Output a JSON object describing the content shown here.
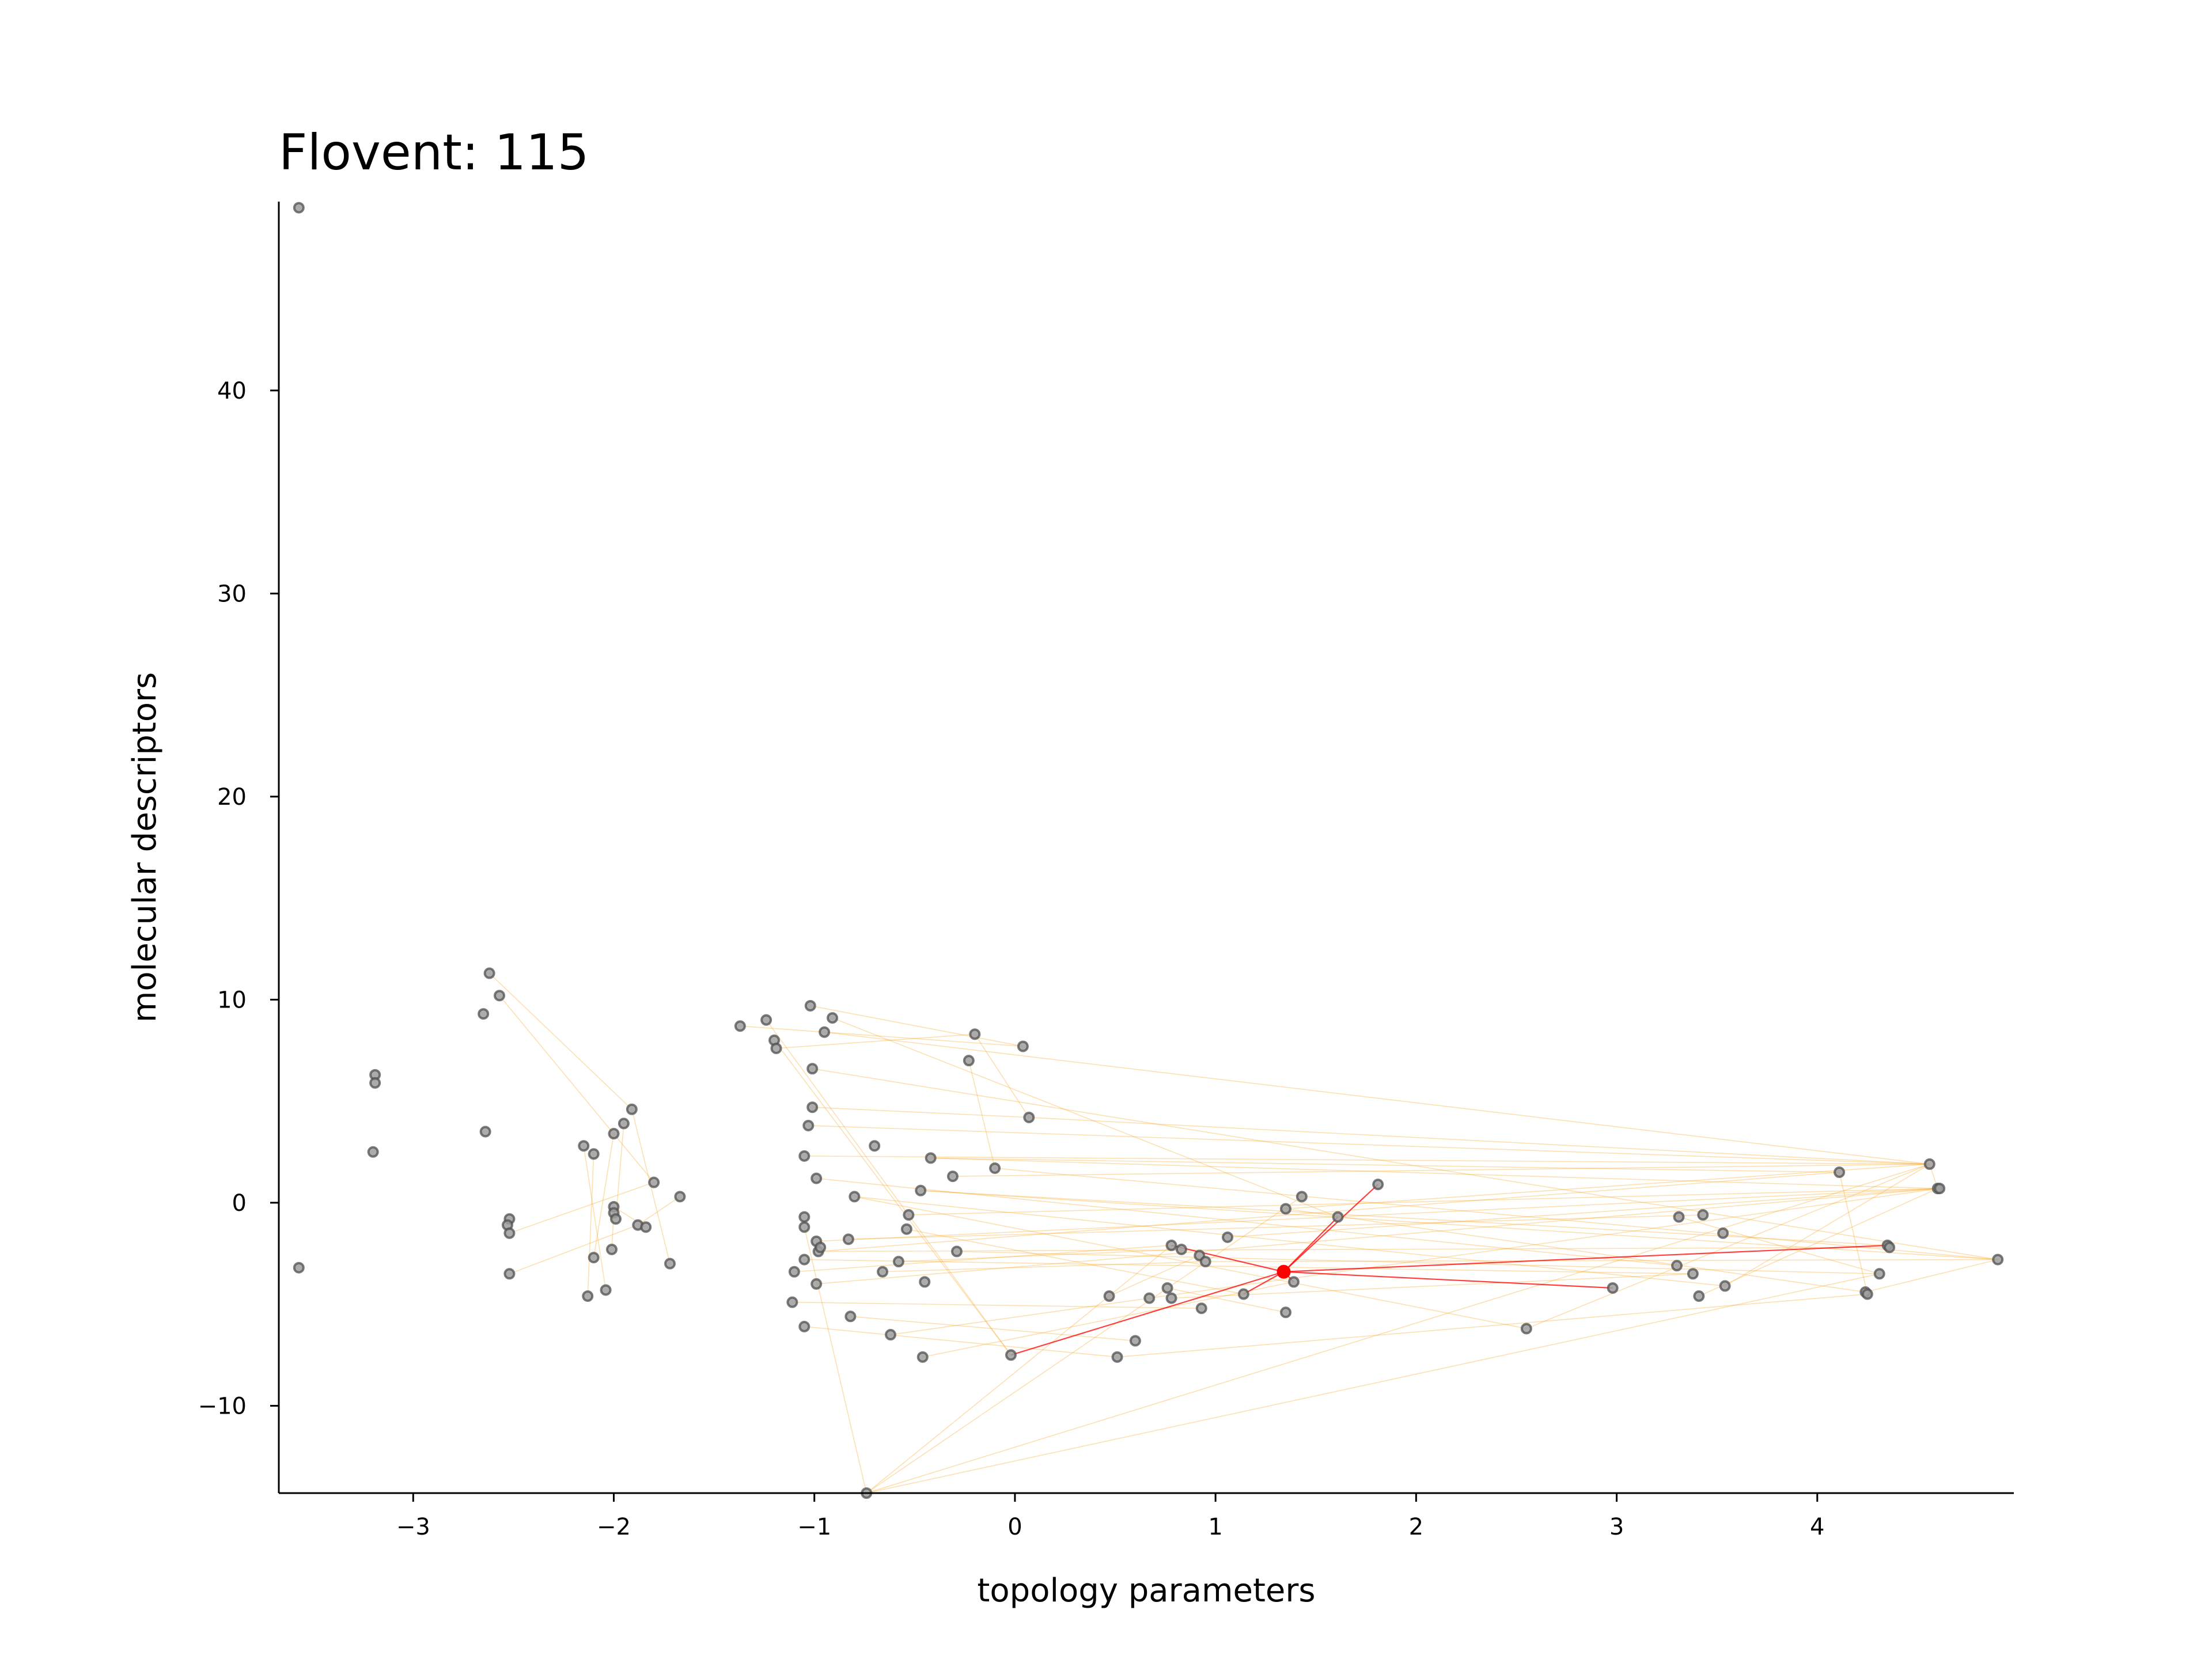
{
  "chart_data": {
    "type": "scatter",
    "title": "Flovent: 115",
    "xlabel": "topology parameters",
    "ylabel": "molecular descriptors",
    "xlim": [
      -3.67,
      4.98
    ],
    "ylim": [
      -14.3,
      49.3
    ],
    "xticks": [
      -3,
      -2,
      -1,
      0,
      1,
      2,
      3,
      4
    ],
    "xtick_labels": [
      "−3",
      "−2",
      "−1",
      "0",
      "1",
      "2",
      "3",
      "4"
    ],
    "yticks": [
      -10,
      0,
      10,
      20,
      30,
      40
    ],
    "ytick_labels": [
      "−10",
      "0",
      "10",
      "20",
      "30",
      "40"
    ],
    "grid": false,
    "legend": "none",
    "colors": {
      "node_fill": "#9e9e9e",
      "node_edge": "#505050",
      "edge": "#f5a623",
      "highlight": "#ff0000"
    },
    "highlight_index": 0,
    "points": [
      [
        1.34,
        -3.4
      ],
      [
        -3.57,
        49.0
      ],
      [
        -3.57,
        -3.2
      ],
      [
        -3.19,
        6.3
      ],
      [
        -3.19,
        5.9
      ],
      [
        -3.2,
        2.5
      ],
      [
        -2.62,
        11.3
      ],
      [
        -2.57,
        10.2
      ],
      [
        -2.65,
        9.3
      ],
      [
        -2.64,
        3.5
      ],
      [
        -2.52,
        -0.8
      ],
      [
        -2.53,
        -1.1
      ],
      [
        -2.52,
        -1.5
      ],
      [
        -2.52,
        -3.5
      ],
      [
        -2.15,
        2.8
      ],
      [
        -2.1,
        2.4
      ],
      [
        -2.1,
        -2.7
      ],
      [
        -2.13,
        -4.6
      ],
      [
        -2.04,
        -4.3
      ],
      [
        -2.0,
        3.4
      ],
      [
        -2.0,
        -0.2
      ],
      [
        -2.0,
        -0.5
      ],
      [
        -1.99,
        -0.8
      ],
      [
        -2.01,
        -2.3
      ],
      [
        -1.95,
        3.9
      ],
      [
        -1.91,
        4.6
      ],
      [
        -1.88,
        -1.1
      ],
      [
        -1.84,
        -1.2
      ],
      [
        -1.8,
        1.0
      ],
      [
        -1.72,
        -3.0
      ],
      [
        -1.67,
        0.3
      ],
      [
        -1.37,
        8.7
      ],
      [
        -1.24,
        9.0
      ],
      [
        -1.2,
        8.0
      ],
      [
        -1.19,
        7.6
      ],
      [
        -1.02,
        9.7
      ],
      [
        -0.95,
        8.4
      ],
      [
        -0.91,
        9.1
      ],
      [
        -1.01,
        6.6
      ],
      [
        -1.01,
        4.7
      ],
      [
        -1.03,
        3.8
      ],
      [
        -1.05,
        2.3
      ],
      [
        -0.99,
        1.2
      ],
      [
        -1.05,
        -0.7
      ],
      [
        -1.05,
        -1.2
      ],
      [
        -0.99,
        -1.9
      ],
      [
        -0.98,
        -2.4
      ],
      [
        -0.97,
        -2.2
      ],
      [
        -1.05,
        -2.8
      ],
      [
        -1.1,
        -3.4
      ],
      [
        -0.99,
        -4.0
      ],
      [
        -1.11,
        -4.9
      ],
      [
        -1.05,
        -6.1
      ],
      [
        -0.8,
        0.3
      ],
      [
        -0.83,
        -1.8
      ],
      [
        -0.82,
        -5.6
      ],
      [
        -0.7,
        2.8
      ],
      [
        -0.66,
        -3.4
      ],
      [
        -0.62,
        -6.5
      ],
      [
        -0.58,
        -2.9
      ],
      [
        -0.53,
        -0.6
      ],
      [
        -0.54,
        -1.3
      ],
      [
        -0.47,
        0.6
      ],
      [
        -0.42,
        2.2
      ],
      [
        -0.45,
        -3.9
      ],
      [
        -0.46,
        -7.6
      ],
      [
        -0.31,
        1.3
      ],
      [
        -0.29,
        -2.4
      ],
      [
        -0.23,
        7.0
      ],
      [
        -0.2,
        8.3
      ],
      [
        -0.1,
        1.7
      ],
      [
        -0.02,
        -7.5
      ],
      [
        0.04,
        7.7
      ],
      [
        0.07,
        4.2
      ],
      [
        0.47,
        -4.6
      ],
      [
        0.51,
        -7.6
      ],
      [
        0.6,
        -6.8
      ],
      [
        0.67,
        -4.7
      ],
      [
        0.76,
        -4.2
      ],
      [
        0.78,
        -2.1
      ],
      [
        0.78,
        -4.7
      ],
      [
        0.83,
        -2.3
      ],
      [
        0.92,
        -2.6
      ],
      [
        0.95,
        -2.9
      ],
      [
        0.93,
        -5.2
      ],
      [
        1.06,
        -1.7
      ],
      [
        1.14,
        -4.5
      ],
      [
        1.35,
        -0.3
      ],
      [
        1.35,
        -5.4
      ],
      [
        1.39,
        -3.9
      ],
      [
        1.43,
        0.3
      ],
      [
        1.61,
        -0.7
      ],
      [
        1.81,
        0.9
      ],
      [
        2.55,
        -6.2
      ],
      [
        2.98,
        -4.2
      ],
      [
        3.3,
        -3.1
      ],
      [
        3.31,
        -0.7
      ],
      [
        3.38,
        -3.5
      ],
      [
        3.41,
        -4.6
      ],
      [
        3.43,
        -0.6
      ],
      [
        3.53,
        -1.5
      ],
      [
        3.54,
        -4.1
      ],
      [
        4.11,
        1.5
      ],
      [
        4.24,
        -4.4
      ],
      [
        4.25,
        -4.5
      ],
      [
        4.31,
        -3.5
      ],
      [
        4.35,
        -2.1
      ],
      [
        4.36,
        -2.2
      ],
      [
        4.56,
        1.9
      ],
      [
        4.6,
        0.7
      ],
      [
        4.61,
        0.7
      ],
      [
        4.9,
        -2.8
      ],
      [
        -0.74,
        -14.3
      ]
    ],
    "edges": [
      [
        0,
        94
      ],
      [
        0,
        92
      ],
      [
        0,
        89
      ],
      [
        0,
        91
      ],
      [
        0,
        114
      ],
      [
        0,
        106
      ],
      [
        0,
        86
      ],
      [
        0,
        79
      ],
      [
        0,
        71
      ],
      [
        0,
        117
      ],
      [
        6,
        25
      ],
      [
        7,
        28
      ],
      [
        25,
        29
      ],
      [
        24,
        22
      ],
      [
        19,
        16
      ],
      [
        14,
        18
      ],
      [
        20,
        27
      ],
      [
        26,
        30
      ],
      [
        12,
        28
      ],
      [
        13,
        26
      ],
      [
        21,
        23
      ],
      [
        15,
        17
      ],
      [
        3,
        4
      ],
      [
        33,
        71
      ],
      [
        35,
        72
      ],
      [
        36,
        108
      ],
      [
        38,
        111
      ],
      [
        39,
        73
      ],
      [
        40,
        113
      ],
      [
        41,
        108
      ],
      [
        42,
        115
      ],
      [
        43,
        116
      ],
      [
        44,
        112
      ],
      [
        45,
        109
      ],
      [
        46,
        107
      ],
      [
        47,
        116
      ],
      [
        48,
        115
      ],
      [
        50,
        110
      ],
      [
        53,
        93
      ],
      [
        54,
        99
      ],
      [
        56,
        113
      ],
      [
        57,
        83
      ],
      [
        58,
        77
      ],
      [
        60,
        109
      ],
      [
        62,
        111
      ],
      [
        63,
        102
      ],
      [
        64,
        116
      ],
      [
        66,
        108
      ],
      [
        67,
        105
      ],
      [
        68,
        70
      ],
      [
        69,
        73
      ],
      [
        70,
        111
      ],
      [
        72,
        113
      ],
      [
        73,
        108
      ],
      [
        74,
        82
      ],
      [
        78,
        88
      ],
      [
        80,
        97
      ],
      [
        82,
        115
      ],
      [
        84,
        116
      ],
      [
        85,
        110
      ],
      [
        87,
        103
      ],
      [
        90,
        112
      ],
      [
        93,
        108
      ],
      [
        95,
        116
      ],
      [
        96,
        105
      ],
      [
        98,
        109
      ],
      [
        100,
        113
      ],
      [
        101,
        108
      ],
      [
        102,
        104
      ],
      [
        103,
        111
      ],
      [
        104,
        115
      ],
      [
        105,
        112
      ],
      [
        106,
        113
      ],
      [
        107,
        116
      ],
      [
        108,
        112
      ],
      [
        108,
        109
      ],
      [
        109,
        114
      ],
      [
        110,
        115
      ],
      [
        111,
        116
      ],
      [
        112,
        114
      ],
      [
        113,
        115
      ],
      [
        114,
        116
      ],
      [
        115,
        111
      ],
      [
        49,
        79
      ],
      [
        51,
        84
      ],
      [
        52,
        75
      ],
      [
        55,
        76
      ],
      [
        59,
        81
      ],
      [
        61,
        86
      ],
      [
        65,
        89
      ],
      [
        37,
        91
      ],
      [
        34,
        69
      ],
      [
        32,
        71
      ],
      [
        31,
        72
      ],
      [
        48,
        97
      ],
      [
        46,
        102
      ],
      [
        42,
        95
      ],
      [
        53,
        101
      ],
      [
        62,
        106
      ],
      [
        40,
        108
      ],
      [
        63,
        109
      ],
      [
        66,
        113
      ],
      [
        57,
        116
      ],
      [
        75,
        104
      ],
      [
        77,
        110
      ],
      [
        79,
        112
      ],
      [
        81,
        115
      ],
      [
        83,
        111
      ],
      [
        85,
        116
      ],
      [
        87,
        108
      ],
      [
        88,
        113
      ]
    ]
  }
}
